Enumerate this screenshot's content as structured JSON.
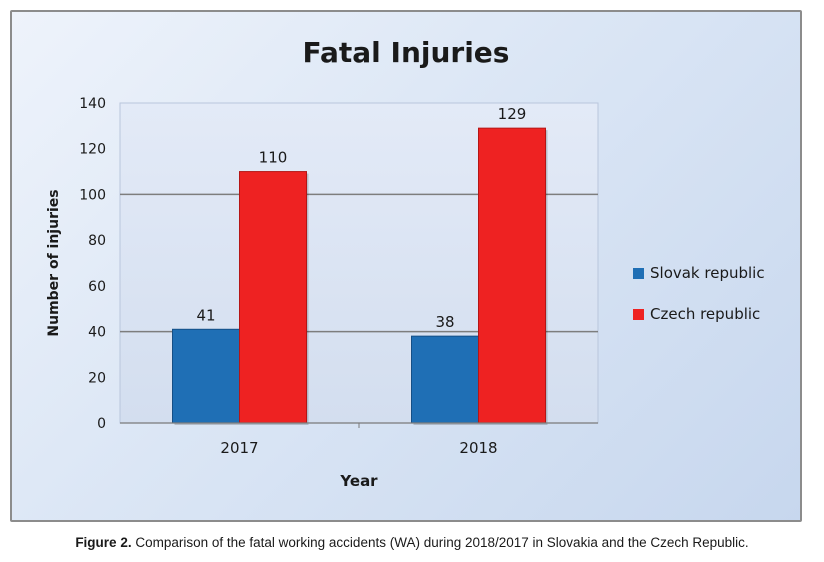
{
  "chart_data": {
    "type": "bar",
    "title": "Fatal Injuries",
    "xlabel": "Year",
    "ylabel": "Number of injuries",
    "categories": [
      "2017",
      "2018"
    ],
    "series": [
      {
        "name": "Slovak republic",
        "values": [
          41,
          38
        ],
        "color": "#1f6fb5"
      },
      {
        "name": "Czech republic",
        "values": [
          110,
          129
        ],
        "color": "#ee2222"
      }
    ],
    "ylim": [
      0,
      140
    ],
    "yticks": [
      "0",
      "20",
      "40",
      "60",
      "80",
      "100",
      "120",
      "140"
    ],
    "ytick_values": [
      0,
      20,
      40,
      60,
      80,
      100,
      120,
      140
    ],
    "grid": true,
    "legend": "right"
  },
  "caption": {
    "label": "Figure 2.",
    "text": " Comparison of the fatal working accidents (WA) during 2018/2017 in Slovakia and the Czech Republic."
  }
}
